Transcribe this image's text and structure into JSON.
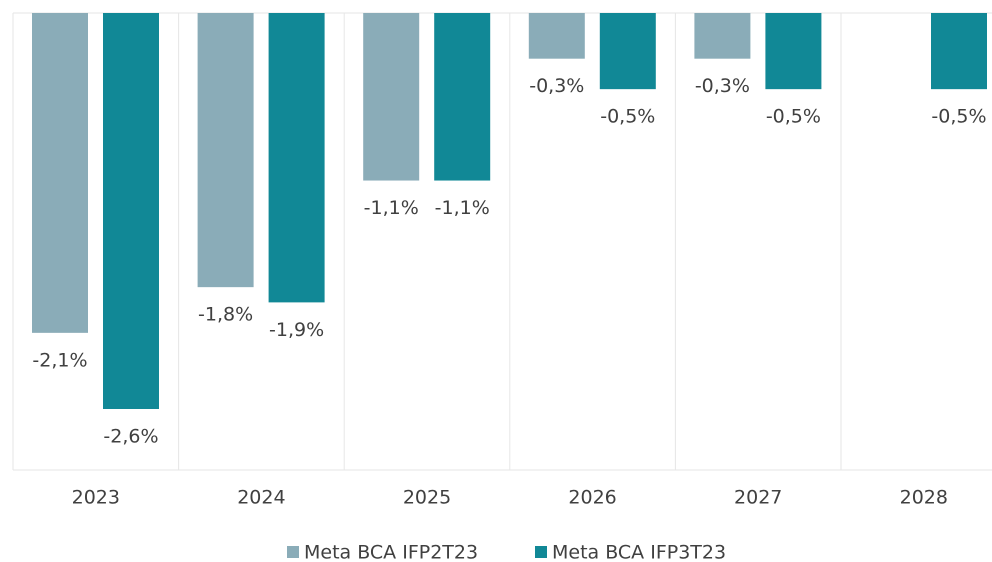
{
  "chart_data": {
    "type": "bar",
    "categories": [
      "2023",
      "2024",
      "2025",
      "2026",
      "2027",
      "2028"
    ],
    "series": [
      {
        "name": "Meta BCA IFP2T23",
        "color": "#8aacb8",
        "values": [
          -2.1,
          -1.8,
          -1.1,
          -0.3,
          -0.3,
          null
        ],
        "value_labels": [
          "-2,1%",
          "-1,8%",
          "-1,1%",
          "-0,3%",
          "-0,3%",
          null
        ]
      },
      {
        "name": "Meta BCA IFP3T23",
        "color": "#118896",
        "values": [
          -2.6,
          -1.9,
          -1.1,
          -0.5,
          -0.5,
          -0.5
        ],
        "value_labels": [
          "-2,6%",
          "-1,9%",
          "-1,1%",
          "-0,5%",
          "-0,5%",
          "-0,5%"
        ]
      }
    ],
    "legend": "bottom"
  }
}
